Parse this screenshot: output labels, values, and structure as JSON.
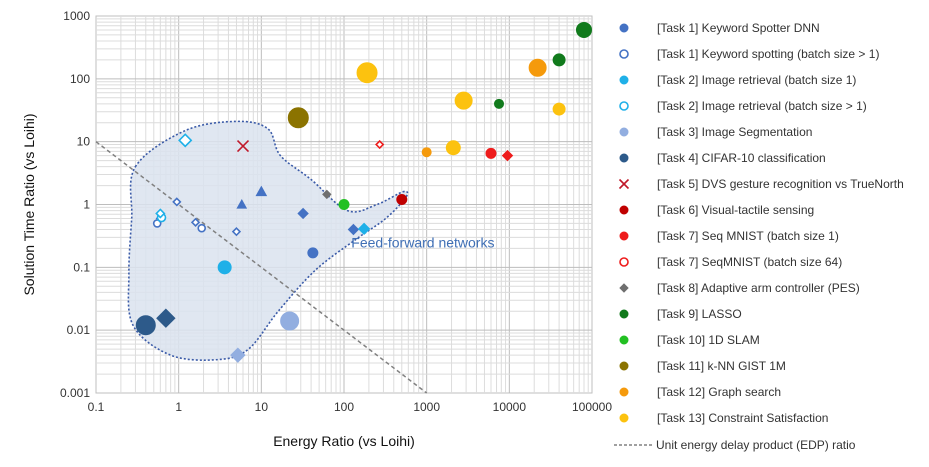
{
  "chart_data": {
    "type": "scatter",
    "xscale": "log",
    "yscale": "log",
    "xlabel": "Energy Ratio (vs Loihi)",
    "ylabel": "Solution Time Ratio (vs Loihi)",
    "xlim": [
      0.1,
      100000
    ],
    "ylim": [
      0.001,
      1000
    ],
    "x_ticks": [
      "0.1",
      "1",
      "10",
      "100",
      "1000",
      "10000",
      "100000"
    ],
    "y_ticks": [
      "0.001",
      "0.01",
      "0.1",
      "1",
      "10",
      "100",
      "1000"
    ],
    "grid": true,
    "legend_position": "right",
    "annotations": [
      {
        "text": "Feed-forward networks",
        "x": 900,
        "y": 0.25
      }
    ],
    "region": {
      "label": "Feed-forward networks",
      "fill": "#dbe3ef",
      "stroke": "#3b5ba8",
      "outline": [
        [
          0.3,
          4
        ],
        [
          1.2,
          15
        ],
        [
          5,
          21
        ],
        [
          12,
          16
        ],
        [
          17,
          6
        ],
        [
          40,
          2.5
        ],
        [
          110,
          0.8
        ],
        [
          250,
          1.0
        ],
        [
          520,
          1.6
        ],
        [
          560,
          1.3
        ],
        [
          320,
          0.6
        ],
        [
          140,
          0.28
        ],
        [
          45,
          0.09
        ],
        [
          16,
          0.02
        ],
        [
          7,
          0.005
        ],
        [
          3,
          0.0034
        ],
        [
          0.8,
          0.004
        ],
        [
          0.28,
          0.012
        ],
        [
          0.25,
          0.08
        ],
        [
          0.27,
          0.6
        ],
        [
          0.3,
          4
        ]
      ]
    },
    "edp_line": {
      "name": "Unit energy delay product (EDP) ratio",
      "x": [
        0.1,
        1000
      ],
      "y": [
        10,
        0.001
      ],
      "color": "#808080"
    },
    "series": [
      {
        "name": "[Task 1] Keyword Spotter DNN",
        "color": "#4472c4",
        "shape": "circle",
        "filled": true,
        "points": [
          {
            "x": 42,
            "y": 0.17,
            "s": 5
          }
        ]
      },
      {
        "name": "[Task 1] Keyword spotting (batch size > 1)",
        "color": "#4472c4",
        "shape": "circle",
        "filled": false,
        "points": [
          {
            "x": 0.55,
            "y": 0.5,
            "s": 3.5
          },
          {
            "x": 1.9,
            "y": 0.42,
            "s": 3.5
          }
        ]
      },
      {
        "name": "[Task 1] Keyword spotting (batch size > 1)",
        "color": "#4472c4",
        "shape": "diamond",
        "filled": false,
        "legend": false,
        "points": [
          {
            "x": 0.6,
            "y": 0.6,
            "s": 3.5
          },
          {
            "x": 0.95,
            "y": 1.1,
            "s": 3.5
          },
          {
            "x": 1.6,
            "y": 0.52,
            "s": 3.5
          },
          {
            "x": 5,
            "y": 0.37,
            "s": 3.5
          }
        ]
      },
      {
        "name": "[Task 1] Keyword Spotter DNN",
        "color": "#4472c4",
        "shape": "triangle",
        "filled": true,
        "legend": false,
        "points": [
          {
            "x": 5.8,
            "y": 1.0,
            "s": 4.5
          },
          {
            "x": 10,
            "y": 1.6,
            "s": 5
          }
        ]
      },
      {
        "name": "[Task 1] Keyword Spotter DNN",
        "color": "#4472c4",
        "shape": "diamond",
        "filled": true,
        "legend": false,
        "points": [
          {
            "x": 32,
            "y": 0.72,
            "s": 5
          },
          {
            "x": 130,
            "y": 0.4,
            "s": 5
          }
        ]
      },
      {
        "name": "[Task 2] Image retrieval (batch size 1)",
        "color": "#1fb0e8",
        "shape": "circle",
        "filled": true,
        "points": [
          {
            "x": 3.6,
            "y": 0.1,
            "s": 6.5
          }
        ]
      },
      {
        "name": "[Task 2] Image retrieval (batch size 1)",
        "color": "#1fb0e8",
        "shape": "diamond",
        "filled": true,
        "legend": false,
        "points": [
          {
            "x": 175,
            "y": 0.41,
            "s": 5.5
          }
        ]
      },
      {
        "name": "[Task 2] Image retrieval (batch size > 1)",
        "color": "#1fb0e8",
        "shape": "circle",
        "filled": false,
        "points": [
          {
            "x": 0.62,
            "y": 0.62,
            "s": 4
          }
        ]
      },
      {
        "name": "[Task 2] Image retrieval (batch size > 1)",
        "color": "#1fb0e8",
        "shape": "diamond",
        "filled": false,
        "legend": false,
        "points": [
          {
            "x": 0.6,
            "y": 0.72,
            "s": 4
          },
          {
            "x": 1.2,
            "y": 10.5,
            "s": 6
          }
        ]
      },
      {
        "name": "[Task 3] Image Segmentation",
        "color": "#92aee0",
        "shape": "circle",
        "filled": true,
        "points": [
          {
            "x": 22,
            "y": 0.014,
            "s": 9
          }
        ]
      },
      {
        "name": "[Task 3] Image Segmentation",
        "color": "#92aee0",
        "shape": "diamond",
        "filled": true,
        "legend": false,
        "points": [
          {
            "x": 5.2,
            "y": 0.004,
            "s": 7
          }
        ]
      },
      {
        "name": "[Task 4] CIFAR-10 classification",
        "color": "#2d5a8a",
        "shape": "circle",
        "filled": true,
        "points": [
          {
            "x": 0.4,
            "y": 0.012,
            "s": 9.5
          }
        ]
      },
      {
        "name": "[Task 4] CIFAR-10 classification",
        "color": "#2d5a8a",
        "shape": "diamond",
        "filled": true,
        "legend": false,
        "points": [
          {
            "x": 0.7,
            "y": 0.0155,
            "s": 9
          }
        ]
      },
      {
        "name": "[Task 5] DVS gesture recognition vs TrueNorth",
        "color": "#c0182a",
        "shape": "cross",
        "filled": false,
        "points": [
          {
            "x": 6,
            "y": 8.5,
            "s": 5.5
          }
        ]
      },
      {
        "name": "[Task 6] Visual-tactile sensing",
        "color": "#c00000",
        "shape": "circle",
        "filled": true,
        "points": [
          {
            "x": 500,
            "y": 1.2,
            "s": 5
          }
        ]
      },
      {
        "name": "[Task 7] Seq MNIST (batch size 1)",
        "color": "#ee1c1c",
        "shape": "circle",
        "filled": true,
        "points": [
          {
            "x": 6000,
            "y": 6.5,
            "s": 5
          }
        ]
      },
      {
        "name": "[Task 7] Seq MNIST (batch size 1)",
        "color": "#ee1c1c",
        "shape": "diamond",
        "filled": true,
        "legend": false,
        "points": [
          {
            "x": 9500,
            "y": 6,
            "s": 5
          }
        ]
      },
      {
        "name": "[Task 7] SeqMNIST (batch size 64)",
        "color": "#ee1c1c",
        "shape": "circle",
        "filled": false,
        "points": []
      },
      {
        "name": "[Task 7] SeqMNIST (batch size 64)",
        "color": "#ee1c1c",
        "shape": "diamond",
        "filled": false,
        "legend": false,
        "points": [
          {
            "x": 270,
            "y": 9,
            "s": 3.5
          }
        ]
      },
      {
        "name": "[Task 8] Adaptive arm controller (PES)",
        "color": "#6f6f6f",
        "shape": "diamond",
        "filled": true,
        "points": [
          {
            "x": 62,
            "y": 1.45,
            "s": 4
          }
        ]
      },
      {
        "name": "[Task 9] LASSO",
        "color": "#117a1c",
        "shape": "circle",
        "filled": true,
        "points": [
          {
            "x": 7500,
            "y": 40,
            "s": 4.5
          },
          {
            "x": 40000,
            "y": 200,
            "s": 6
          },
          {
            "x": 80000,
            "y": 600,
            "s": 7.5
          }
        ]
      },
      {
        "name": "[Task 10] 1D SLAM",
        "color": "#22c022",
        "shape": "circle",
        "filled": true,
        "points": [
          {
            "x": 100,
            "y": 1.0,
            "s": 5
          }
        ]
      },
      {
        "name": "[Task 11] k-NN GIST 1M",
        "color": "#8b7300",
        "shape": "circle",
        "filled": true,
        "points": [
          {
            "x": 28,
            "y": 24,
            "s": 10
          }
        ]
      },
      {
        "name": "[Task 12] Graph search",
        "color": "#f59a0c",
        "shape": "circle",
        "filled": true,
        "points": [
          {
            "x": 1000,
            "y": 6.8,
            "s": 4.5
          },
          {
            "x": 22000,
            "y": 150,
            "s": 8.5
          }
        ]
      },
      {
        "name": "[Task 13] Constraint Satisfaction",
        "color": "#fcc20f",
        "shape": "circle",
        "filled": true,
        "points": [
          {
            "x": 190,
            "y": 125,
            "s": 10
          },
          {
            "x": 2800,
            "y": 45,
            "s": 8.5
          },
          {
            "x": 2100,
            "y": 8,
            "s": 7
          },
          {
            "x": 40000,
            "y": 33,
            "s": 6
          }
        ]
      }
    ]
  }
}
